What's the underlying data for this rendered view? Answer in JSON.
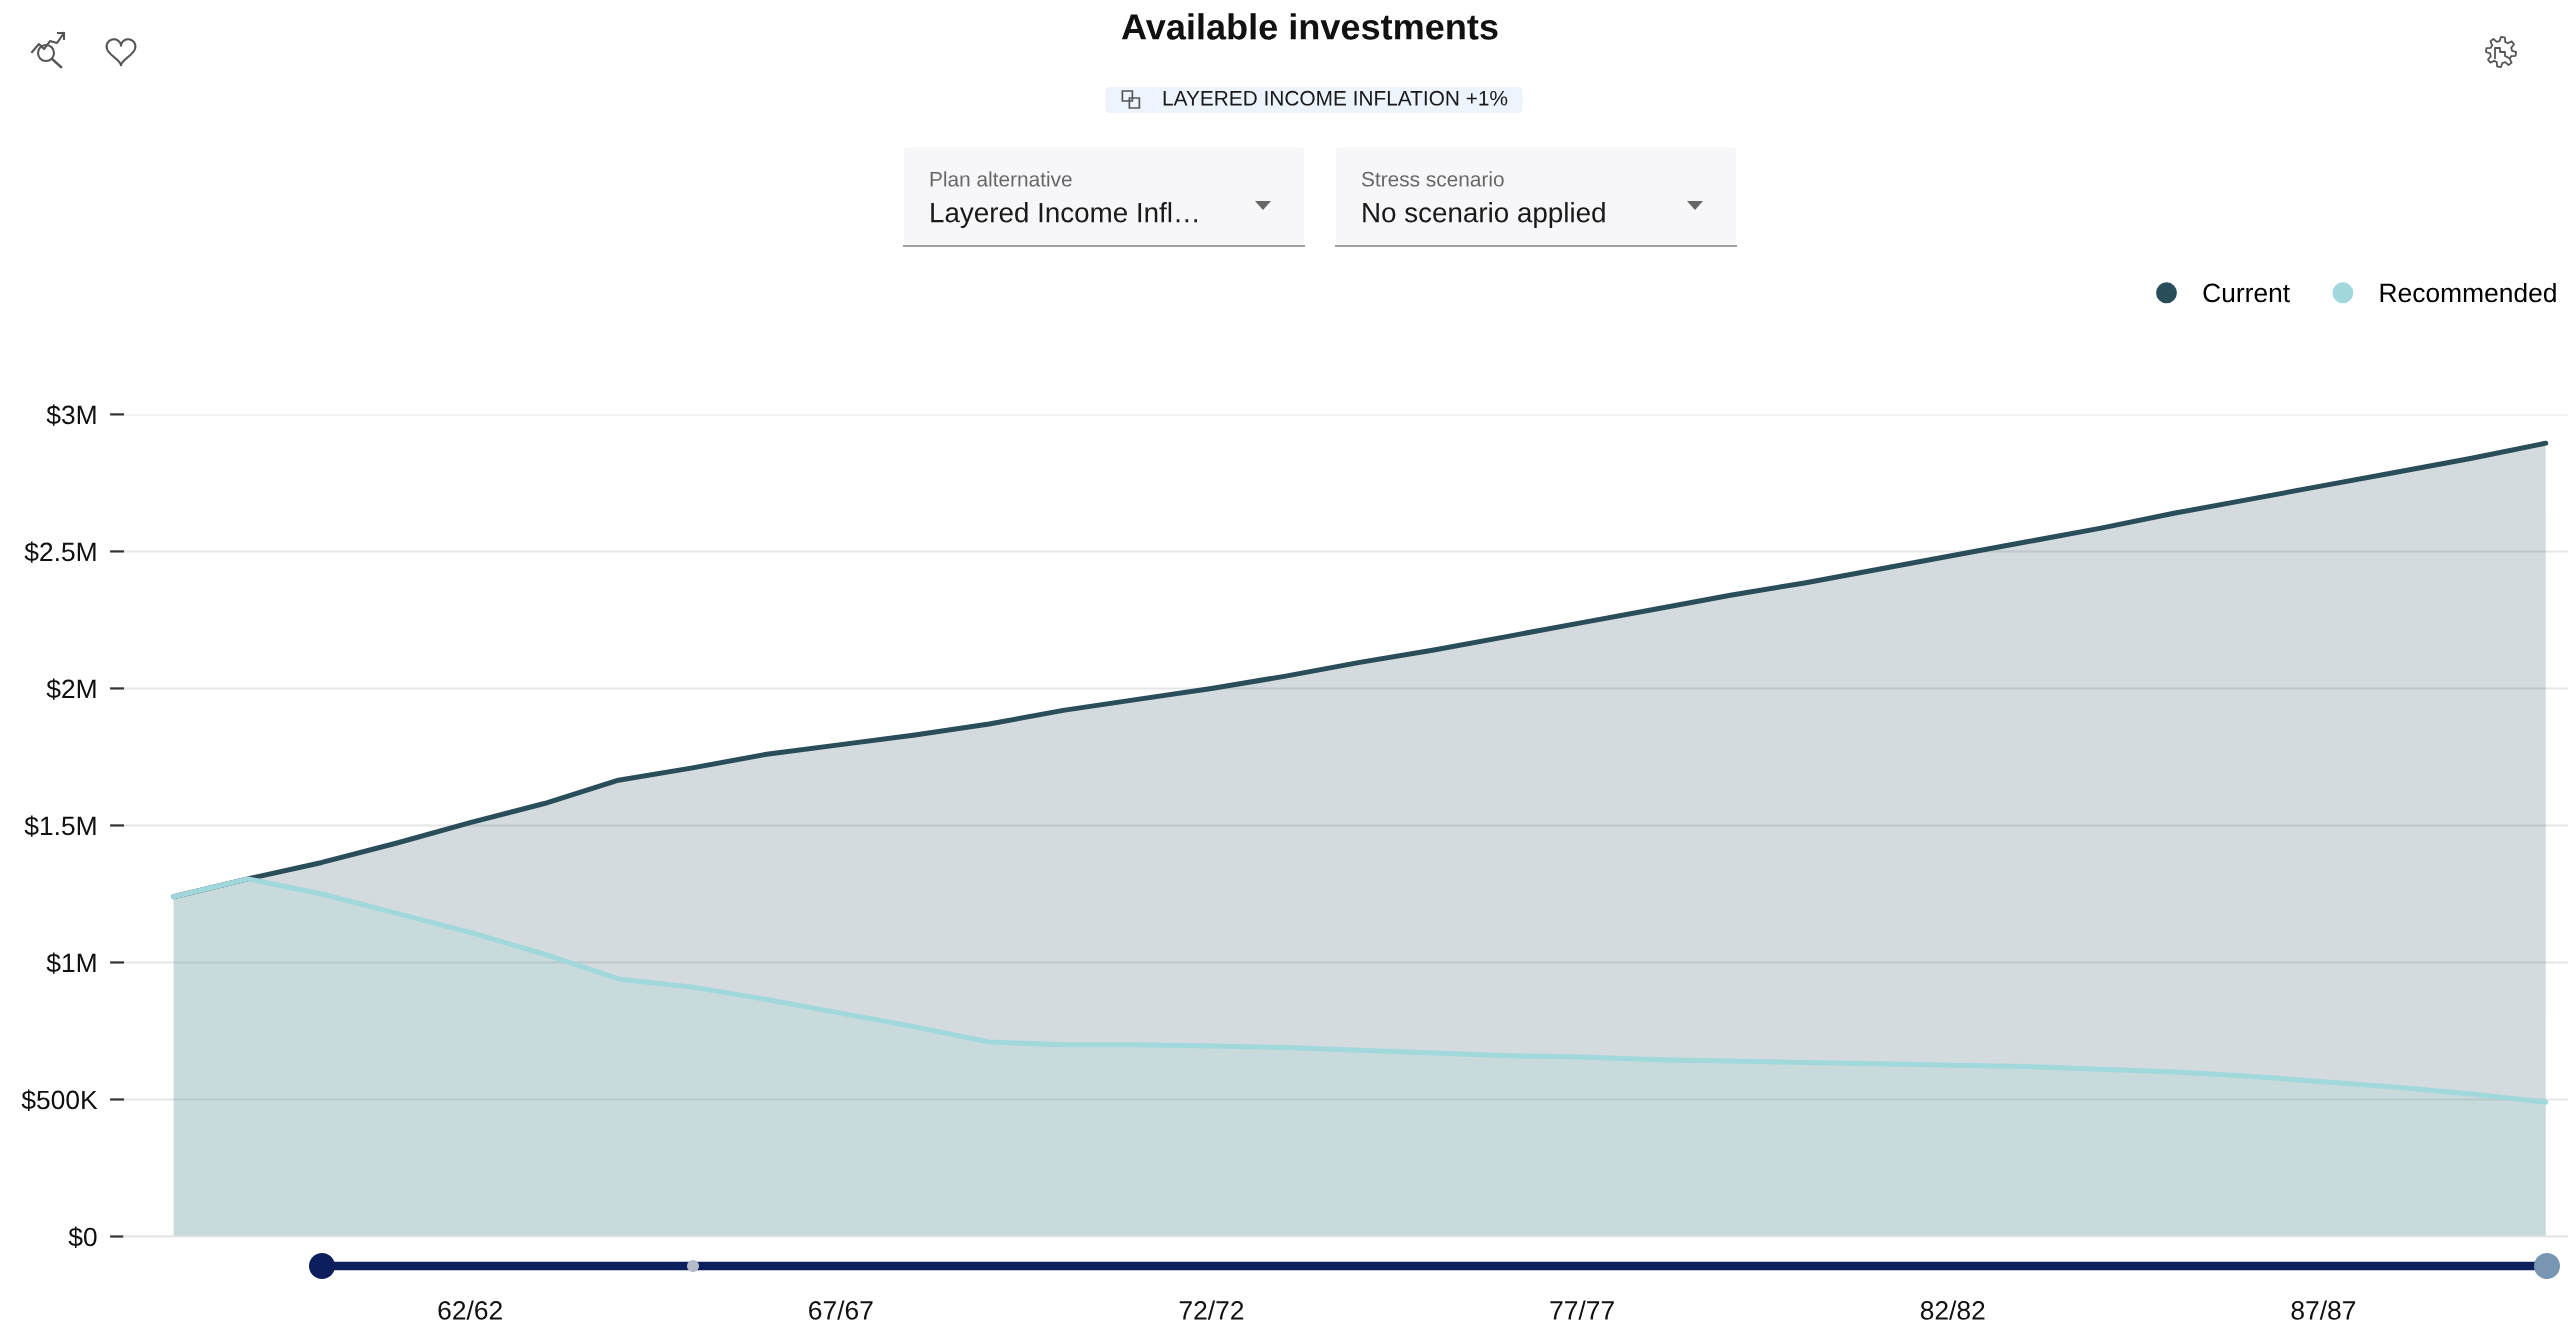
{
  "chart_data": {
    "type": "area",
    "title": "Available investments",
    "subtitle": "LAYERED INCOME INFLATION +1%",
    "annotations": [
      "Plan alternative",
      "Layered Income Infl…",
      "Stress scenario",
      "No scenario applied"
    ],
    "categories": [
      null,
      null,
      null,
      null,
      "62/62",
      null,
      null,
      null,
      null,
      "67/67",
      null,
      null,
      null,
      null,
      "72/72",
      null,
      null,
      null,
      null,
      "77/77",
      null,
      null,
      null,
      null,
      "82/82",
      null,
      null,
      null,
      null,
      "87/87",
      null,
      null,
      null
    ],
    "series": [
      {
        "name": "Current",
        "color": "#2a4d5a",
        "values": [
          1240000,
          1305000,
          1365000,
          1435000,
          1510000,
          1580000,
          1665000,
          1710000,
          1760000,
          1795000,
          1830000,
          1870000,
          1920000,
          1960000,
          2000000,
          2045000,
          2095000,
          2140000,
          2190000,
          2240000,
          2290000,
          2340000,
          2385000,
          2435000,
          2485000,
          2535000,
          2585000,
          2640000,
          2690000,
          2740000,
          2790000,
          2840000,
          2895000
        ]
      },
      {
        "name": "Recommended",
        "color": "#a0d8dc",
        "values": [
          1240000,
          1305000,
          1250000,
          1180000,
          1110000,
          1030000,
          940000,
          910000,
          865000,
          815000,
          765000,
          710000,
          700000,
          700000,
          695000,
          690000,
          680000,
          670000,
          660000,
          655000,
          645000,
          640000,
          635000,
          630000,
          625000,
          620000,
          610000,
          600000,
          585000,
          565000,
          545000,
          520000,
          490000
        ]
      }
    ],
    "ylim": [
      0,
      3000000
    ],
    "yticks": [
      {
        "value": 0,
        "label": "$0"
      },
      {
        "value": 500000,
        "label": "$500K"
      },
      {
        "value": 1000000,
        "label": "$1M"
      },
      {
        "value": 1500000,
        "label": "$1.5M"
      },
      {
        "value": 2000000,
        "label": "$2M"
      },
      {
        "value": 2500000,
        "label": "$2.5M"
      },
      {
        "value": 3000000,
        "label": "$3M"
      }
    ],
    "grid": "y",
    "legend": "top right"
  }
}
